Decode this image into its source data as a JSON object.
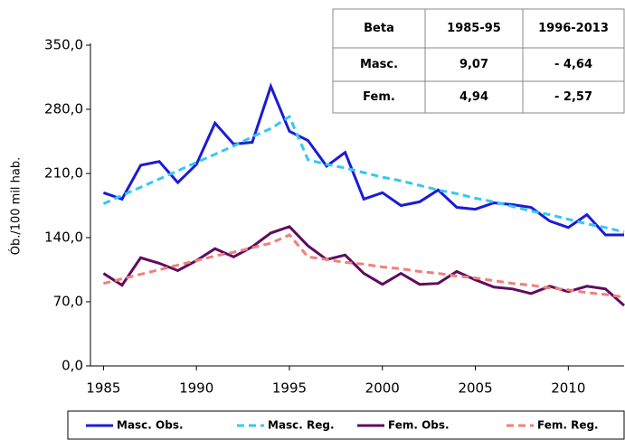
{
  "chart_data": {
    "type": "line",
    "y_label": "Ób./100 mil hab.",
    "x": [
      1985,
      1986,
      1987,
      1988,
      1989,
      1990,
      1991,
      1992,
      1993,
      1994,
      1995,
      1996,
      1997,
      1998,
      1999,
      2000,
      2001,
      2002,
      2003,
      2004,
      2005,
      2006,
      2007,
      2008,
      2009,
      2010,
      2011,
      2012,
      2013
    ],
    "xlim": [
      1984.3,
      2013
    ],
    "xticks": [
      1985,
      1990,
      1995,
      2000,
      2005,
      2010
    ],
    "ylim": [
      0,
      350
    ],
    "yticks": [
      {
        "value": 0,
        "label": "0,0"
      },
      {
        "value": 70,
        "label": "70,0"
      },
      {
        "value": 140,
        "label": "140,0"
      },
      {
        "value": 210,
        "label": "210,0"
      },
      {
        "value": 280,
        "label": "280,0"
      },
      {
        "value": 350,
        "label": "350,0"
      }
    ],
    "series": [
      {
        "name": "Masc. Obs.",
        "color": "#1b1bd6",
        "dashed": false,
        "values": [
          189,
          182,
          219,
          223,
          200,
          220,
          265,
          242,
          244,
          305,
          256,
          246,
          218,
          233,
          182,
          189,
          175,
          179,
          192,
          173,
          171,
          178,
          176,
          173,
          158,
          151,
          165,
          143,
          143
        ]
      },
      {
        "name": "Masc. Reg.",
        "color": "#33c8f2",
        "dashed": true,
        "values": [
          177,
          186,
          195,
          204,
          213,
          222,
          231,
          240,
          250,
          259,
          272,
          225,
          220,
          216,
          211,
          206,
          202,
          197,
          192,
          188,
          183,
          179,
          174,
          169,
          165,
          160,
          155,
          151,
          146
        ]
      },
      {
        "name": "Fem. Obs.",
        "color": "#5e0c5e",
        "dashed": false,
        "values": [
          101,
          88,
          118,
          112,
          104,
          115,
          128,
          119,
          130,
          145,
          152,
          131,
          116,
          121,
          101,
          89,
          101,
          89,
          90,
          103,
          94,
          86,
          84,
          79,
          87,
          81,
          87,
          84,
          66
        ]
      },
      {
        "name": "Fem. Reg.",
        "color": "#f0807a",
        "dashed": true,
        "values": [
          90,
          95,
          100,
          105,
          110,
          115,
          120,
          124,
          129,
          134,
          143,
          119,
          116,
          113,
          111,
          108,
          106,
          103,
          101,
          98,
          96,
          93,
          90,
          88,
          85,
          83,
          80,
          78,
          75
        ]
      }
    ]
  },
  "table": {
    "header": [
      "Beta",
      "1985-95",
      "1996-2013"
    ],
    "rows": [
      [
        "Masc.",
        "9,07",
        "- 4,64"
      ],
      [
        "Fem.",
        "4,94",
        "- 2,57"
      ]
    ]
  }
}
